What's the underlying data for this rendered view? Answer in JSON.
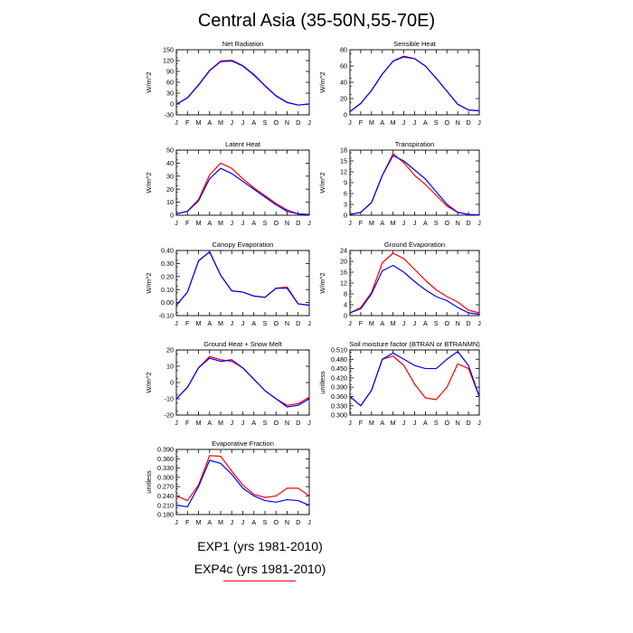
{
  "figure": {
    "title": "Central Asia (35-50N,55-70E)",
    "legend": [
      {
        "label": "EXP1 (yrs 1981-2010)",
        "color": "#0000ff"
      },
      {
        "label": "EXP4c (yrs 1981-2010)",
        "color": "#ff0000"
      }
    ]
  },
  "colors": {
    "exp1": "#0000ff",
    "exp4c": "#ff0000",
    "axis": "#000000"
  },
  "chart_data": [
    {
      "type": "line",
      "title": "Net Radiation",
      "ylabel": "W/m^2",
      "categories": [
        "J",
        "F",
        "M",
        "A",
        "M",
        "J",
        "J",
        "A",
        "S",
        "O",
        "N",
        "D",
        "J"
      ],
      "ylim": [
        -30,
        150
      ],
      "yticks": [
        "150",
        "120",
        "90",
        "60",
        "30",
        "0",
        "-30"
      ],
      "series": [
        {
          "name": "EXP1 (yrs 1981-2010)",
          "values": [
            -1,
            17,
            52,
            92,
            117,
            119,
            105,
            80,
            50,
            22,
            4,
            -3,
            0
          ]
        },
        {
          "name": "EXP4c (yrs 1981-2010)",
          "values": [
            -1,
            17,
            53,
            93,
            119,
            121,
            106,
            82,
            51,
            23,
            5,
            -3,
            0
          ]
        }
      ]
    },
    {
      "type": "line",
      "title": "Sensible Heat",
      "ylabel": "W/m^2",
      "categories": [
        "J",
        "F",
        "M",
        "A",
        "M",
        "J",
        "J",
        "A",
        "S",
        "O",
        "N",
        "D",
        "J"
      ],
      "ylim": [
        0,
        80
      ],
      "yticks": [
        "80",
        "60",
        "40",
        "20",
        "0"
      ],
      "series": [
        {
          "name": "EXP1 (yrs 1981-2010)",
          "values": [
            4,
            14,
            30,
            50,
            66,
            72,
            69,
            60,
            45,
            29,
            13,
            6,
            5
          ]
        },
        {
          "name": "EXP4c (yrs 1981-2010)",
          "values": [
            4,
            14,
            30,
            50,
            66,
            71,
            69,
            60,
            45,
            29,
            13,
            6,
            5
          ]
        }
      ]
    },
    {
      "type": "line",
      "title": "Latent Heat",
      "ylabel": "W/m^2",
      "categories": [
        "J",
        "F",
        "M",
        "A",
        "M",
        "J",
        "J",
        "A",
        "S",
        "O",
        "N",
        "D",
        "J"
      ],
      "ylim": [
        0,
        50
      ],
      "yticks": [
        "50",
        "40",
        "30",
        "20",
        "10",
        "0"
      ],
      "series": [
        {
          "name": "EXP1 (yrs 1981-2010)",
          "values": [
            1,
            3,
            11,
            28,
            36,
            32,
            26,
            20,
            14,
            8,
            3,
            1,
            0.5
          ]
        },
        {
          "name": "EXP4c (yrs 1981-2010)",
          "values": [
            1,
            3,
            12,
            31,
            40,
            36,
            28,
            21,
            15,
            9,
            4,
            1,
            0.5
          ]
        }
      ]
    },
    {
      "type": "line",
      "title": "Transpiration",
      "ylabel": "W/m^2",
      "categories": [
        "J",
        "F",
        "M",
        "A",
        "M",
        "J",
        "J",
        "A",
        "S",
        "O",
        "N",
        "D",
        "J"
      ],
      "ylim": [
        0,
        18
      ],
      "yticks": [
        "18",
        "15",
        "12",
        "9",
        "6",
        "3",
        "0"
      ],
      "series": [
        {
          "name": "EXP1 (yrs 1981-2010)",
          "values": [
            0.2,
            0.8,
            3.5,
            11,
            16.5,
            15,
            12.5,
            10,
            6.5,
            3,
            0.8,
            0.2,
            0.1
          ]
        },
        {
          "name": "EXP4c (yrs 1981-2010)",
          "values": [
            0.2,
            0.8,
            3.5,
            11,
            17,
            14.5,
            11,
            8.5,
            5.5,
            2.5,
            0.8,
            0.2,
            0.1
          ]
        }
      ]
    },
    {
      "type": "line",
      "title": "Canopy Evaporation",
      "ylabel": "W/m^2",
      "categories": [
        "J",
        "F",
        "M",
        "A",
        "M",
        "J",
        "J",
        "A",
        "S",
        "O",
        "N",
        "D",
        "J"
      ],
      "ylim": [
        -0.1,
        0.4
      ],
      "yticks": [
        "0.40",
        "0.30",
        "0.20",
        "0.10",
        "0.00",
        "-0.10"
      ],
      "series": [
        {
          "name": "EXP1 (yrs 1981-2010)",
          "values": [
            -0.02,
            0.08,
            0.32,
            0.39,
            0.21,
            0.09,
            0.08,
            0.05,
            0.04,
            0.11,
            0.11,
            -0.01,
            -0.02
          ]
        },
        {
          "name": "EXP4c (yrs 1981-2010)",
          "values": [
            -0.02,
            0.08,
            0.32,
            0.39,
            0.21,
            0.09,
            0.08,
            0.05,
            0.04,
            0.11,
            0.12,
            -0.01,
            -0.02
          ]
        }
      ]
    },
    {
      "type": "line",
      "title": "Ground Evaporation",
      "ylabel": "W/m^2",
      "categories": [
        "J",
        "F",
        "M",
        "A",
        "M",
        "J",
        "J",
        "A",
        "S",
        "O",
        "N",
        "D",
        "J"
      ],
      "ylim": [
        0,
        24
      ],
      "yticks": [
        "24",
        "20",
        "16",
        "12",
        "8",
        "4",
        "0"
      ],
      "series": [
        {
          "name": "EXP1 (yrs 1981-2010)",
          "values": [
            1,
            2.5,
            8,
            16.5,
            18.5,
            16,
            12.5,
            9.5,
            7,
            5.5,
            3,
            1,
            0.5
          ]
        },
        {
          "name": "EXP4c (yrs 1981-2010)",
          "values": [
            1,
            3,
            8.5,
            19.5,
            23,
            21,
            17,
            13,
            9.5,
            7,
            5,
            2,
            1
          ]
        }
      ]
    },
    {
      "type": "line",
      "title": "Ground Heat + Snow Melt",
      "ylabel": "W/m^2",
      "categories": [
        "J",
        "F",
        "M",
        "A",
        "M",
        "J",
        "J",
        "A",
        "S",
        "O",
        "N",
        "D",
        "J"
      ],
      "ylim": [
        -20,
        20
      ],
      "yticks": [
        "20",
        "10",
        "0",
        "-10",
        "-20"
      ],
      "series": [
        {
          "name": "EXP1 (yrs 1981-2010)",
          "values": [
            -10,
            -3,
            9,
            15,
            13,
            14,
            9,
            2,
            -5,
            -10,
            -15,
            -14,
            -10
          ]
        },
        {
          "name": "EXP4c (yrs 1981-2010)",
          "values": [
            -10,
            -3,
            9,
            16,
            14,
            13,
            9,
            2,
            -5,
            -10,
            -14,
            -13,
            -9
          ]
        }
      ]
    },
    {
      "type": "line",
      "title": "Soil moisture factor (BTRAN or BTRANMN)",
      "ylabel": "unitless",
      "categories": [
        "J",
        "F",
        "M",
        "A",
        "M",
        "J",
        "J",
        "A",
        "S",
        "O",
        "N",
        "D",
        "J"
      ],
      "ylim": [
        0.3,
        0.51
      ],
      "yticks": [
        "0.510",
        "0.480",
        "0.450",
        "0.420",
        "0.390",
        "0.360",
        "0.330",
        "0.300"
      ],
      "series": [
        {
          "name": "EXP1 (yrs 1981-2010)",
          "values": [
            0.36,
            0.33,
            0.38,
            0.48,
            0.5,
            0.48,
            0.46,
            0.45,
            0.45,
            0.48,
            0.505,
            0.46,
            0.36
          ]
        },
        {
          "name": "EXP4c (yrs 1981-2010)",
          "values": [
            0.36,
            0.33,
            0.38,
            0.48,
            0.49,
            0.46,
            0.4,
            0.355,
            0.35,
            0.39,
            0.465,
            0.45,
            0.36
          ]
        }
      ]
    },
    {
      "type": "line",
      "title": "Evaporative Fraction",
      "ylabel": "unitless",
      "categories": [
        "J",
        "F",
        "M",
        "A",
        "M",
        "J",
        "J",
        "A",
        "S",
        "O",
        "N",
        "D",
        "J"
      ],
      "ylim": [
        0.18,
        0.39
      ],
      "yticks": [
        "0.390",
        "0.360",
        "0.330",
        "0.300",
        "0.270",
        "0.240",
        "0.210",
        "0.180"
      ],
      "series": [
        {
          "name": "EXP1 (yrs 1981-2010)",
          "values": [
            0.21,
            0.205,
            0.27,
            0.355,
            0.345,
            0.31,
            0.265,
            0.24,
            0.225,
            0.22,
            0.228,
            0.225,
            0.21
          ]
        },
        {
          "name": "EXP4c (yrs 1981-2010)",
          "values": [
            0.24,
            0.225,
            0.275,
            0.37,
            0.368,
            0.32,
            0.275,
            0.245,
            0.235,
            0.24,
            0.265,
            0.265,
            0.24
          ]
        }
      ]
    }
  ]
}
